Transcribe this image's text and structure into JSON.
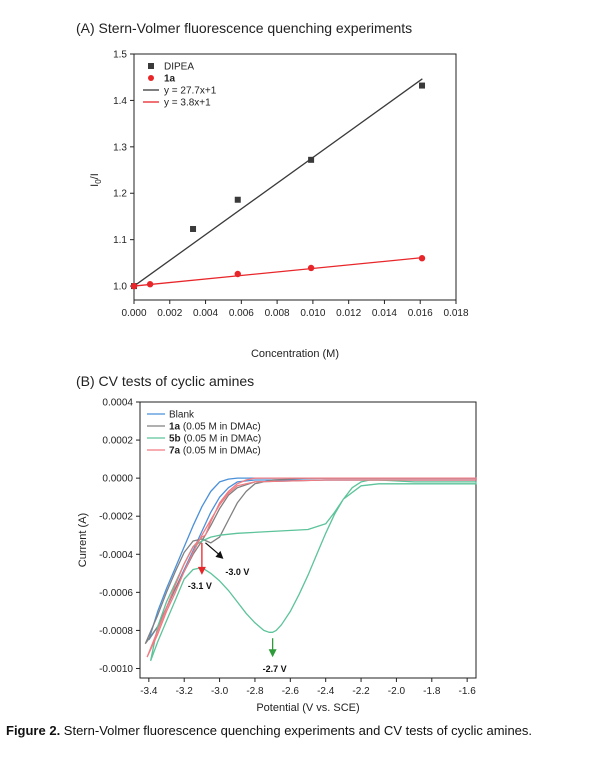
{
  "panelA": {
    "title": "(A) Stern-Volmer fluorescence quenching experiments",
    "chart_data": {
      "type": "scatter",
      "xlabel": "Concentration (M)",
      "ylabel": "I0/I",
      "xlim": [
        0.0,
        0.018
      ],
      "ylim": [
        0.97,
        1.5
      ],
      "xticks": [
        "0.000",
        "0.002",
        "0.004",
        "0.006",
        "0.008",
        "0.010",
        "0.012",
        "0.014",
        "0.016",
        "0.018"
      ],
      "yticks": [
        "1.0",
        "1.1",
        "1.2",
        "1.3",
        "1.4",
        "1.5"
      ],
      "legend_position": "top-left",
      "series": [
        {
          "name": "DIPEA",
          "marker": "square",
          "color": "#3a3a3a",
          "x": [
            0.0,
            0.0033,
            0.0058,
            0.0099,
            0.0161
          ],
          "y": [
            1.0,
            1.123,
            1.186,
            1.272,
            1.432
          ]
        },
        {
          "name": "1a",
          "marker": "circle",
          "color": "#e8262a",
          "x": [
            0.0,
            0.0009,
            0.0058,
            0.0099,
            0.0161
          ],
          "y": [
            1.0,
            1.004,
            1.026,
            1.039,
            1.06
          ]
        }
      ],
      "fits": [
        {
          "name": "y = 27.7x+1",
          "slope": 27.7,
          "intercept": 1,
          "color": "#3a3a3a"
        },
        {
          "name": "y = 3.8x+1",
          "slope": 3.8,
          "intercept": 1,
          "color": "#e8262a"
        }
      ]
    }
  },
  "panelB": {
    "title": "(B) CV tests of cyclic amines",
    "chart_data": {
      "type": "line",
      "xlabel": "Potential (V vs. SCE)",
      "ylabel": "Current (A)",
      "xlim": [
        -3.45,
        -1.55
      ],
      "ylim": [
        -0.00105,
        0.0004
      ],
      "xticks": [
        "-3.4",
        "-3.2",
        "-3.0",
        "-2.8",
        "-2.6",
        "-2.4",
        "-2.2",
        "-2.0",
        "-1.8",
        "-1.6"
      ],
      "yticks": [
        "0.0004",
        "0.0002",
        "0.0000",
        "-0.0002",
        "-0.0004",
        "-0.0006",
        "-0.0008",
        "-0.0010"
      ],
      "legend_position": "top-left",
      "series": [
        {
          "name": "Blank",
          "color": "#4a90d9",
          "label_bold": "",
          "label_rest": "Blank",
          "x": [
            -3.4,
            -3.35,
            -3.3,
            -3.25,
            -3.2,
            -3.15,
            -3.1,
            -3.05,
            -3.0,
            -2.95,
            -2.9,
            -2.85,
            -2.8,
            -2.6,
            -2.2,
            -1.55,
            -1.55,
            -2.4,
            -2.8,
            -2.9,
            -2.95,
            -3.0,
            -3.05,
            -3.1,
            -3.15,
            -3.2,
            -3.25,
            -3.3,
            -3.35,
            -3.4
          ],
          "y": [
            -0.00085,
            -0.0007,
            -0.00058,
            -0.00047,
            -0.00036,
            -0.00025,
            -0.00015,
            -7e-05,
            -2e-05,
            -5e-06,
            0,
            0,
            0,
            0,
            0,
            0,
            -1e-05,
            -1e-05,
            -1e-05,
            -2e-05,
            -5e-05,
            -0.0001,
            -0.00018,
            -0.00028,
            -0.00038,
            -0.00048,
            -0.00058,
            -0.00068,
            -0.00078,
            -0.00085
          ]
        },
        {
          "name": "1a (0.05 M in DMAc)",
          "color": "#808080",
          "label_bold": "1a",
          "label_rest": " (0.05 M in DMAc)",
          "x": [
            -3.42,
            -3.35,
            -3.3,
            -3.25,
            -3.2,
            -3.15,
            -3.1,
            -3.05,
            -3.0,
            -2.95,
            -2.9,
            -2.85,
            -2.8,
            -2.7,
            -2.5,
            -2.2,
            -1.55,
            -1.55,
            -2.4,
            -2.8,
            -2.9,
            -2.95,
            -3.0,
            -3.05,
            -3.1,
            -3.15,
            -3.2,
            -3.25,
            -3.3,
            -3.35,
            -3.42
          ],
          "y": [
            -0.00087,
            -0.00072,
            -0.0006,
            -0.00049,
            -0.00039,
            -0.00033,
            -0.00032,
            -0.00034,
            -0.00031,
            -0.00022,
            -0.00013,
            -7e-05,
            -3e-05,
            -1e-05,
            0,
            0,
            0,
            -1e-05,
            -1e-05,
            -2e-05,
            -5e-05,
            -9e-05,
            -0.00016,
            -0.00025,
            -0.00033,
            -0.0004,
            -0.00049,
            -0.00058,
            -0.00068,
            -0.00078,
            -0.00087
          ]
        },
        {
          "name": "5b (0.05 M in DMAc)",
          "color": "#5cc39a",
          "label_bold": "5b",
          "label_rest": " (0.05 M in DMAc)",
          "x": [
            -3.39,
            -3.35,
            -3.3,
            -3.25,
            -3.2,
            -3.15,
            -3.1,
            -3.05,
            -3.0,
            -2.95,
            -2.9,
            -2.85,
            -2.8,
            -2.75,
            -2.72,
            -2.7,
            -2.68,
            -2.65,
            -2.6,
            -2.55,
            -2.5,
            -2.45,
            -2.4,
            -2.35,
            -2.3,
            -2.25,
            -2.2,
            -2.15,
            -2.1,
            -1.9,
            -1.55,
            -1.55,
            -1.9,
            -2.1,
            -2.2,
            -2.3,
            -2.35,
            -2.4,
            -2.5,
            -2.7,
            -2.9,
            -3.0,
            -3.05,
            -3.1,
            -3.15,
            -3.2,
            -3.25,
            -3.3,
            -3.35,
            -3.39
          ],
          "y": [
            -0.00096,
            -0.00086,
            -0.00075,
            -0.00064,
            -0.00053,
            -0.00048,
            -0.00047,
            -0.0005,
            -0.00054,
            -0.00059,
            -0.00065,
            -0.00071,
            -0.00076,
            -0.0008,
            -0.00081,
            -0.00081,
            -0.0008,
            -0.00077,
            -0.0007,
            -0.00061,
            -0.00051,
            -0.0004,
            -0.00029,
            -0.00019,
            -0.00011,
            -5e-05,
            -2e-05,
            -1e-05,
            -1e-05,
            -2e-05,
            -2e-05,
            -3e-05,
            -3e-05,
            -3e-05,
            -4e-05,
            -0.00011,
            -0.00018,
            -0.00024,
            -0.00027,
            -0.00028,
            -0.00029,
            -0.0003,
            -0.00031,
            -0.00033,
            -0.00036,
            -0.00045,
            -0.00055,
            -0.00065,
            -0.00078,
            -0.00096
          ]
        },
        {
          "name": "7a (0.05 M in DMAc)",
          "color": "#f07b82",
          "label_bold": "7a",
          "label_rest": " (0.05 M in DMAc)",
          "x": [
            -3.41,
            -3.35,
            -3.3,
            -3.25,
            -3.2,
            -3.15,
            -3.1,
            -3.08,
            -3.05,
            -3.0,
            -2.95,
            -2.9,
            -2.85,
            -2.8,
            -2.6,
            -2.2,
            -1.55,
            -1.55,
            -2.4,
            -2.8,
            -2.9,
            -2.95,
            -3.0,
            -3.05,
            -3.1,
            -3.15,
            -3.2,
            -3.25,
            -3.3,
            -3.35,
            -3.41
          ],
          "y": [
            -0.00094,
            -0.0008,
            -0.00068,
            -0.00056,
            -0.00045,
            -0.00036,
            -0.00031,
            -0.0003,
            -0.00023,
            -0.00013,
            -7e-05,
            -3e-05,
            -1e-05,
            0,
            0,
            0,
            0,
            -1e-05,
            -1e-05,
            -2e-05,
            -4e-05,
            -8e-05,
            -0.00014,
            -0.00022,
            -0.0003,
            -0.00039,
            -0.00049,
            -0.0006,
            -0.0007,
            -0.00082,
            -0.00094
          ]
        }
      ],
      "annotations": [
        {
          "text": "-3.0 V",
          "color": "#111111",
          "x": -3.08,
          "y": -0.00034
        },
        {
          "text": "-3.1 V",
          "color": "#e8262a",
          "x": -3.1,
          "y": -0.00048
        },
        {
          "text": "-2.7 V",
          "color": "#2e9b3a",
          "x": -2.7,
          "y": -0.00082
        }
      ]
    }
  },
  "caption": {
    "label": "Figure 2.",
    "text": " Stern-Volmer fluorescence quenching experiments and CV tests of cyclic amines."
  }
}
